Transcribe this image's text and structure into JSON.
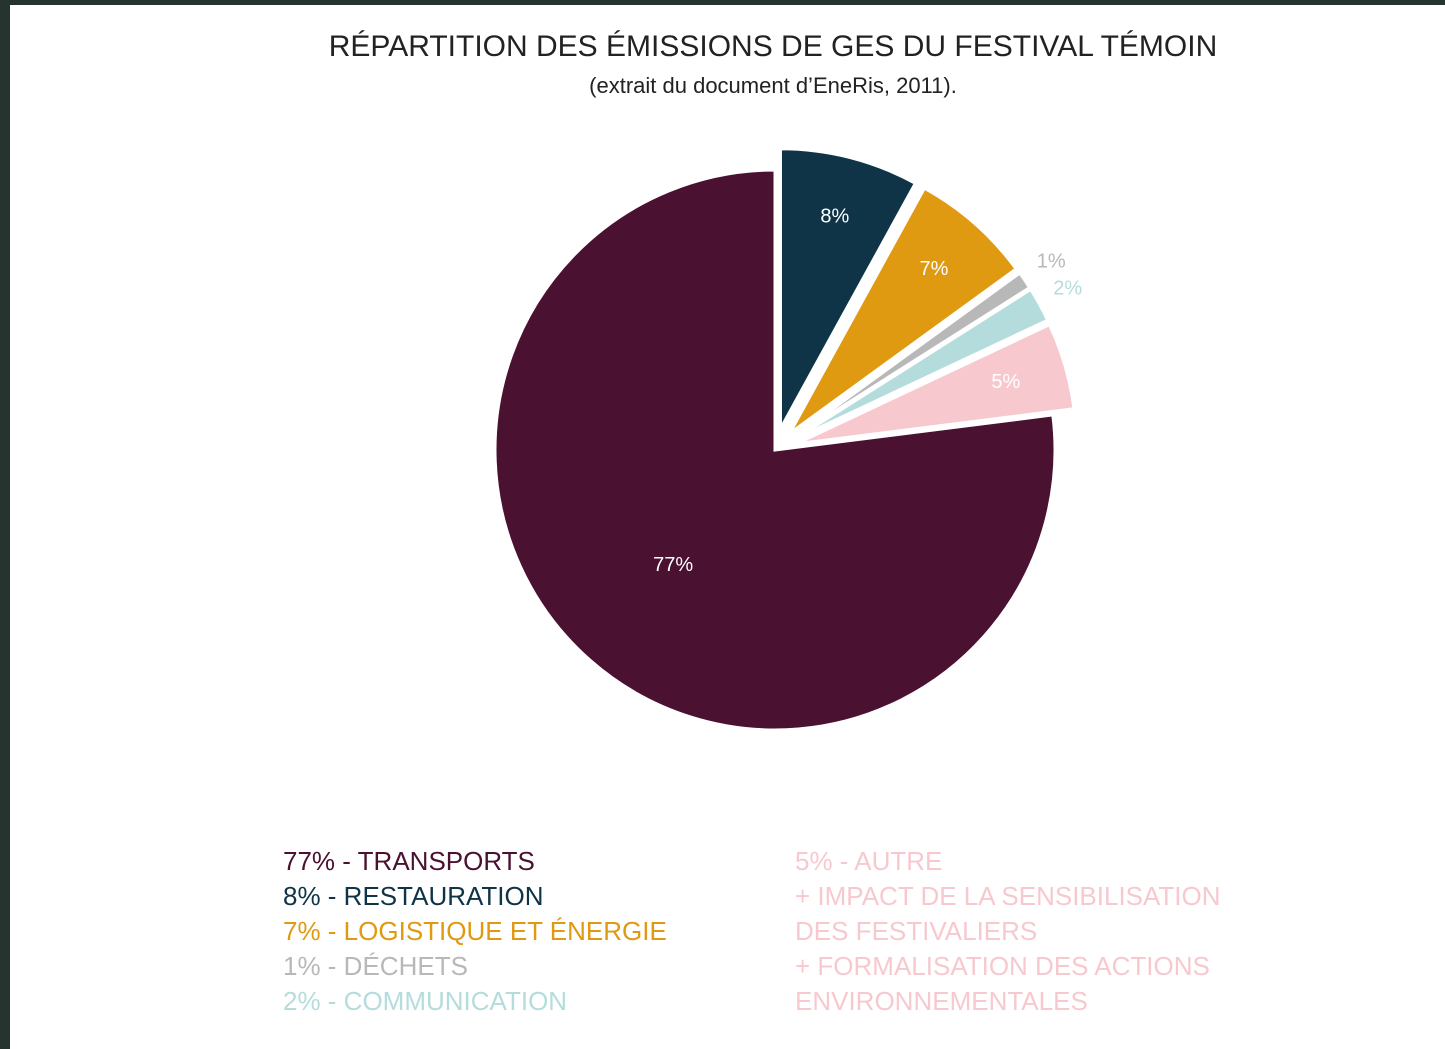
{
  "chart_data": {
    "type": "pie",
    "title": "RÉPARTITION DES ÉMISSIONS DE GES DU FESTIVAL TÉMOIN",
    "subtitle": "(extrait du document d’EneRis, 2011).",
    "categories": [
      "77% - TRANSPORTS",
      "8% - RESTAURATION",
      "7% - LOGISTIQUE ET ÉNERGIE",
      "1% - DÉCHETS",
      "2% - COMMUNICATION",
      "5% - AUTRE"
    ],
    "legend_note": [
      "+ IMPACT DE LA SENSIBILISATION",
      "DES FESTIVALIERS",
      "+ FORMALISATION DES ACTIONS",
      "ENVIRONNEMENTALES"
    ],
    "values": [
      77,
      8,
      7,
      1,
      2,
      5
    ],
    "value_labels": [
      "77%",
      "8%",
      "7%",
      "1%",
      "2%",
      "5%"
    ],
    "colors": [
      "#4a1131",
      "#0f3347",
      "#e09a12",
      "#b8b8b8",
      "#b5dcdc",
      "#f7c9cf"
    ]
  }
}
